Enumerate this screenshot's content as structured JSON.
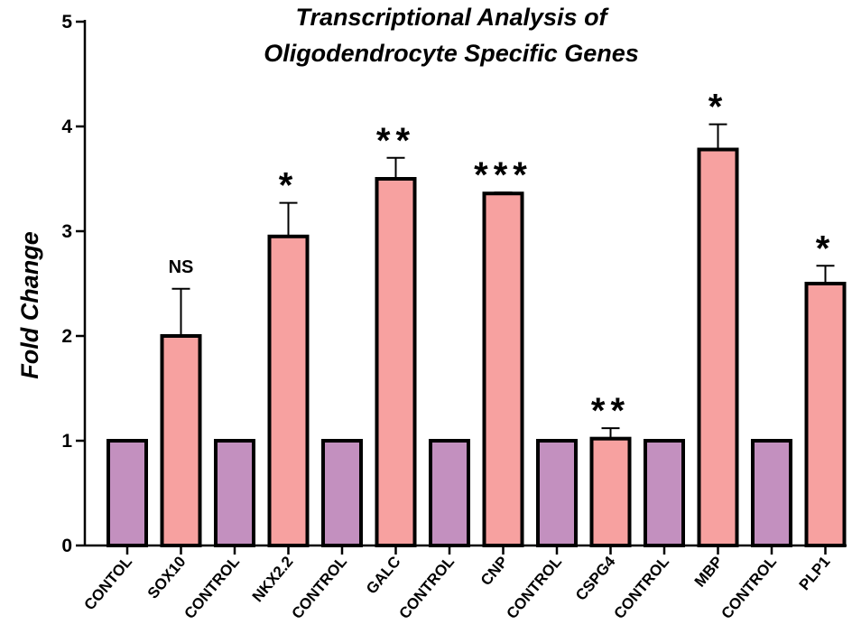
{
  "chart_data": {
    "type": "bar",
    "title_lines": [
      "Transcriptional Analysis of",
      "Oligodendrocyte Specific Genes"
    ],
    "ylabel": "Fold Change",
    "xlabel": "",
    "ylim": [
      0,
      5
    ],
    "yticks": [
      "0",
      "1",
      "2",
      "3",
      "4",
      "5"
    ],
    "grid": false,
    "categories": [
      "CONTOL",
      "SOX10",
      "CONTROL",
      "NKX2.2",
      "CONTROL",
      "GALC",
      "CONTROL",
      "CNP",
      "CONTROL",
      "CSPG4",
      "CONTROL",
      "MBP",
      "CONTROL",
      "PLP1"
    ],
    "values": [
      1,
      2.0,
      1,
      2.95,
      1,
      3.5,
      1,
      3.36,
      1,
      1.02,
      1,
      3.78,
      1,
      2.5
    ],
    "error_upper": [
      null,
      2.45,
      null,
      3.27,
      null,
      3.7,
      null,
      3.37,
      null,
      1.12,
      null,
      4.02,
      null,
      2.67
    ],
    "significance": [
      "",
      "NS",
      "",
      "*",
      "",
      "**",
      "",
      "***",
      "",
      "**",
      "",
      "*",
      "",
      "*"
    ],
    "colors": {
      "control": "#c390bf",
      "treated": "#f7a1a0",
      "outline": "#000000"
    }
  }
}
